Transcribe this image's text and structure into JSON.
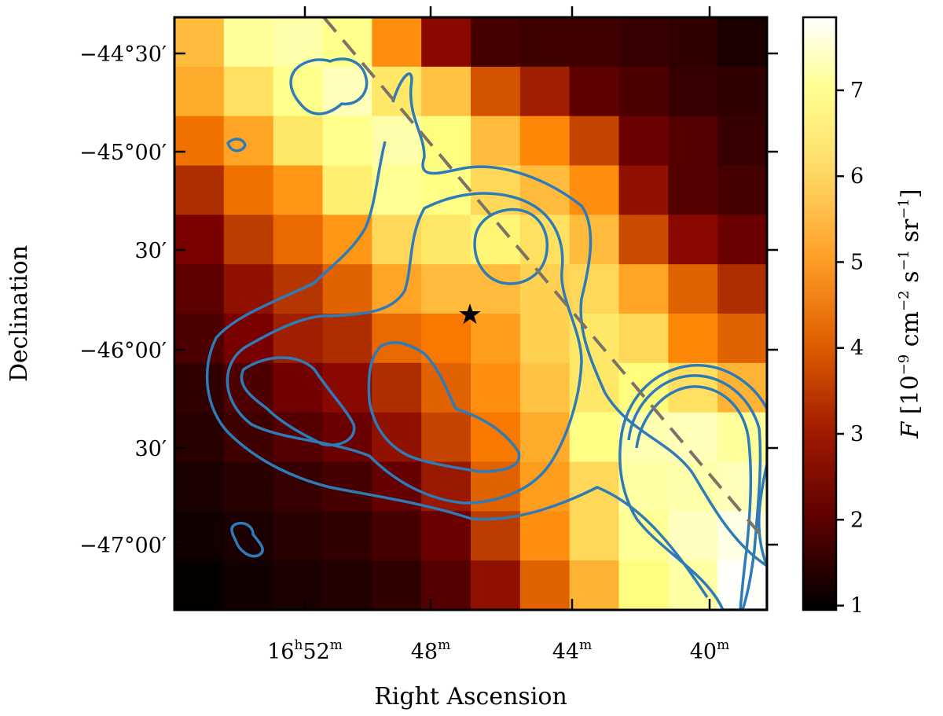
{
  "chart_data": {
    "type": "heatmap",
    "title": "",
    "xlabel": "Right Ascension",
    "ylabel": "Declination",
    "x_tick_labels": [
      {
        "h": "16",
        "m": "52"
      },
      {
        "m": "48"
      },
      {
        "m": "44"
      },
      {
        "m": "40"
      }
    ],
    "y_tick_labels": [
      "−44°30′",
      "−45°00′",
      "30′",
      "−46°00′",
      "30′",
      "−47°00′"
    ],
    "colorbar": {
      "label_var": "F",
      "label_units": "10",
      "label_exp": "−9",
      "label_rest": " cm",
      "label_sq": "−2",
      "label_s": " s",
      "label_s_exp": "−1",
      "label_sr": " sr",
      "label_sr_exp": "−1",
      "label_open": " [",
      "label_close": "]",
      "ticks": [
        "1",
        "2",
        "3",
        "4",
        "5",
        "6",
        "7"
      ],
      "tick_values": [
        1,
        2,
        3,
        4,
        5,
        6,
        7
      ],
      "range": [
        0.95,
        7.85
      ],
      "colormap": "afmhot"
    },
    "grid_shape": [
      12,
      12
    ],
    "values": [
      [
        5.2,
        6.5,
        6.7,
        6.3,
        4.6,
        2.8,
        1.9,
        1.8,
        1.8,
        1.7,
        1.6,
        1.3
      ],
      [
        5.0,
        5.7,
        6.3,
        6.9,
        5.8,
        5.3,
        3.8,
        3.1,
        2.2,
        2.0,
        1.7,
        1.6
      ],
      [
        4.2,
        4.9,
        5.8,
        6.3,
        6.7,
        6.1,
        5.2,
        4.5,
        3.6,
        2.4,
        2.1,
        1.7
      ],
      [
        3.3,
        4.2,
        4.7,
        5.9,
        6.4,
        6.2,
        5.6,
        5.2,
        4.6,
        2.9,
        2.1,
        1.9
      ],
      [
        2.6,
        3.5,
        4.1,
        4.7,
        5.6,
        5.8,
        6.0,
        5.7,
        5.2,
        3.7,
        2.8,
        2.4
      ],
      [
        2.2,
        2.9,
        3.4,
        4.0,
        4.9,
        5.2,
        5.2,
        5.5,
        5.6,
        4.9,
        4.0,
        3.3
      ],
      [
        2.0,
        2.6,
        3.1,
        3.3,
        4.1,
        4.3,
        4.8,
        5.5,
        5.8,
        5.6,
        4.5,
        4.0
      ],
      [
        1.6,
        2.0,
        2.5,
        2.8,
        3.3,
        4.0,
        4.6,
        5.3,
        5.8,
        6.1,
        5.7,
        5.1
      ],
      [
        1.5,
        1.8,
        2.1,
        2.4,
        2.9,
        3.6,
        4.3,
        5.0,
        6.2,
        6.8,
        6.9,
        6.5
      ],
      [
        1.3,
        1.5,
        1.7,
        1.9,
        2.3,
        3.0,
        4.0,
        4.8,
        5.6,
        6.6,
        6.7,
        6.9
      ],
      [
        1.2,
        1.3,
        1.5,
        1.6,
        1.9,
        2.4,
        3.5,
        4.6,
        5.6,
        6.4,
        7.0,
        7.5
      ],
      [
        1.0,
        1.2,
        1.3,
        1.4,
        1.6,
        2.1,
        2.9,
        4.0,
        5.1,
        6.1,
        6.6,
        7.8
      ]
    ],
    "marker": {
      "symbol": "★",
      "label": "star"
    },
    "dashed_line": {
      "color": "#7a7368"
    },
    "contour_color": "#2e7bb8",
    "grid": false
  }
}
